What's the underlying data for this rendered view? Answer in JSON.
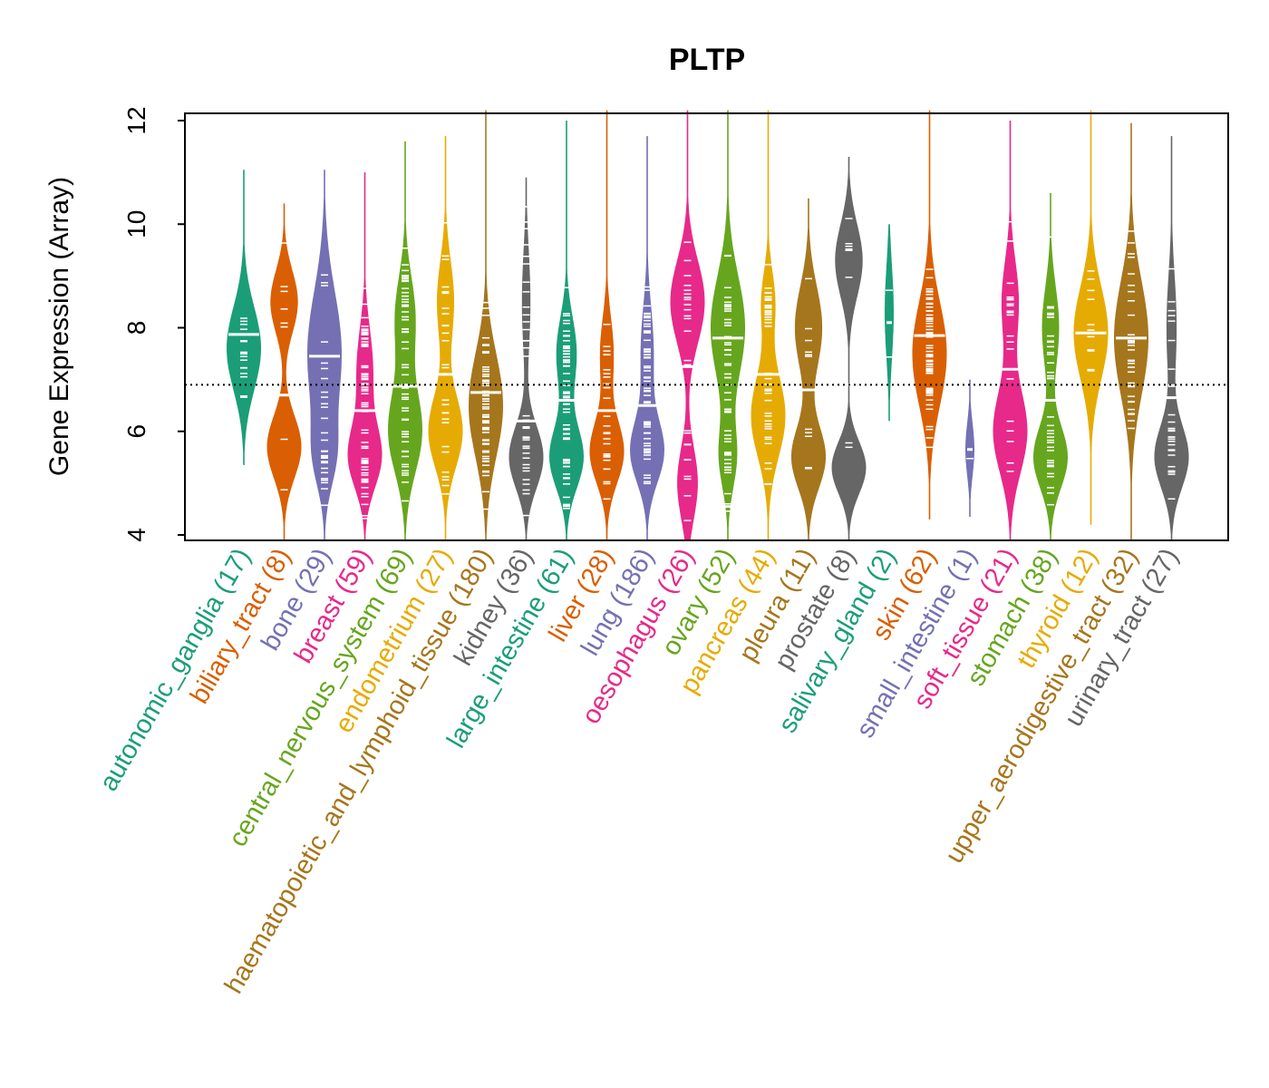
{
  "chart_data": {
    "type": "violin",
    "title": "PLTP",
    "xlabel": "",
    "ylabel": "Gene Expression (Array)",
    "ylim": [
      4,
      12
    ],
    "yticks": [
      "4",
      "6",
      "8",
      "10",
      "12"
    ],
    "reference_line": 6.9,
    "palette": [
      "#1B9E77",
      "#D95F02",
      "#7570B3",
      "#E7298A",
      "#66A61E",
      "#E6AB02",
      "#A6761D",
      "#666666"
    ],
    "groups": [
      {
        "name": "autonomic_ganglia",
        "n": 17,
        "label": "autonomic_ganglia (17)",
        "median": 7.87,
        "min": 5.35,
        "max": 11.05,
        "modes": [
          [
            7.6,
            0.8,
            1
          ]
        ]
      },
      {
        "name": "biliary_tract",
        "n": 8,
        "label": "biliary_tract (8)",
        "median": 6.7,
        "min": 3.9,
        "max": 10.4,
        "modes": [
          [
            5.7,
            0.6,
            1
          ],
          [
            8.5,
            0.6,
            0.8
          ]
        ]
      },
      {
        "name": "bone",
        "n": 29,
        "label": "bone (29)",
        "median": 7.45,
        "min": 3.9,
        "max": 11.05,
        "modes": [
          [
            7.5,
            1.2,
            1
          ],
          [
            5.5,
            0.6,
            0.5
          ]
        ]
      },
      {
        "name": "breast",
        "n": 59,
        "label": "breast (59)",
        "median": 6.4,
        "min": 3.9,
        "max": 11.0,
        "modes": [
          [
            5.5,
            0.6,
            1
          ],
          [
            7.2,
            0.8,
            0.5
          ]
        ]
      },
      {
        "name": "central_nervous_system",
        "n": 69,
        "label": "central_nervous_system (69)",
        "median": 6.87,
        "min": 3.9,
        "max": 11.6,
        "modes": [
          [
            6.0,
            0.8,
            1
          ],
          [
            8.2,
            0.8,
            0.6
          ]
        ]
      },
      {
        "name": "endometrium",
        "n": 27,
        "label": "endometrium (27)",
        "median": 7.1,
        "min": 3.9,
        "max": 11.7,
        "modes": [
          [
            6.0,
            0.7,
            1
          ],
          [
            8.5,
            0.8,
            0.5
          ]
        ]
      },
      {
        "name": "haematopoietic_and_lymphoid_tissue",
        "n": 180,
        "label": "haematopoietic_and_lymphoid_tissue (180)",
        "median": 6.75,
        "min": 3.9,
        "max": 12.2,
        "modes": [
          [
            6.5,
            1.0,
            1
          ]
        ]
      },
      {
        "name": "kidney",
        "n": 36,
        "label": "kidney (36)",
        "median": 6.2,
        "min": 3.9,
        "max": 10.9,
        "modes": [
          [
            5.5,
            0.6,
            1
          ],
          [
            8.5,
            1.0,
            0.25
          ]
        ]
      },
      {
        "name": "large_intestine",
        "n": 61,
        "label": "large_intestine (61)",
        "median": 6.6,
        "min": 3.9,
        "max": 12.0,
        "modes": [
          [
            5.5,
            0.6,
            1
          ],
          [
            7.5,
            0.7,
            0.6
          ]
        ]
      },
      {
        "name": "liver",
        "n": 28,
        "label": "liver (28)",
        "median": 6.4,
        "min": 3.9,
        "max": 12.2,
        "modes": [
          [
            5.6,
            0.6,
            1
          ],
          [
            7.5,
            0.7,
            0.4
          ]
        ]
      },
      {
        "name": "lung",
        "n": 186,
        "label": "lung (186)",
        "median": 6.5,
        "min": 3.9,
        "max": 11.7,
        "modes": [
          [
            5.6,
            0.6,
            1
          ],
          [
            7.5,
            0.9,
            0.4
          ]
        ]
      },
      {
        "name": "oesophagus",
        "n": 26,
        "label": "oesophagus (26)",
        "median": 7.25,
        "min": 3.9,
        "max": 12.2,
        "modes": [
          [
            8.5,
            0.8,
            1
          ],
          [
            5.0,
            0.7,
            0.6
          ]
        ]
      },
      {
        "name": "ovary",
        "n": 52,
        "label": "ovary (52)",
        "median": 7.8,
        "min": 3.9,
        "max": 12.2,
        "modes": [
          [
            8.0,
            1.0,
            1
          ],
          [
            5.5,
            0.6,
            0.5
          ]
        ]
      },
      {
        "name": "pancreas",
        "n": 44,
        "label": "pancreas (44)",
        "median": 7.1,
        "min": 3.9,
        "max": 12.2,
        "modes": [
          [
            6.3,
            0.8,
            1
          ],
          [
            8.5,
            0.6,
            0.4
          ]
        ]
      },
      {
        "name": "pleura",
        "n": 11,
        "label": "pleura (11)",
        "median": 6.8,
        "min": 3.9,
        "max": 10.5,
        "modes": [
          [
            5.5,
            0.6,
            1
          ],
          [
            8.0,
            0.8,
            0.8
          ]
        ]
      },
      {
        "name": "prostate",
        "n": 8,
        "label": "prostate (8)",
        "median": 6.9,
        "min": 3.9,
        "max": 11.3,
        "modes": [
          [
            5.3,
            0.5,
            1
          ],
          [
            9.3,
            0.7,
            0.8
          ]
        ]
      },
      {
        "name": "salivary_gland",
        "n": 2,
        "label": "salivary_gland (2)",
        "median": 8.1,
        "min": 6.2,
        "max": 10.0,
        "modes": [
          [
            8.3,
            0.9,
            1
          ]
        ]
      },
      {
        "name": "skin",
        "n": 62,
        "label": "skin (62)",
        "median": 7.85,
        "min": 4.3,
        "max": 12.2,
        "modes": [
          [
            7.5,
            1.0,
            1
          ]
        ]
      },
      {
        "name": "small_intestine",
        "n": 1,
        "label": "small_intestine (1)",
        "median": 5.65,
        "min": 4.35,
        "max": 7.0,
        "modes": [
          [
            5.65,
            0.5,
            1
          ]
        ]
      },
      {
        "name": "soft_tissue",
        "n": 21,
        "label": "soft_tissue (21)",
        "median": 7.2,
        "min": 3.9,
        "max": 12.0,
        "modes": [
          [
            6.0,
            0.8,
            1
          ],
          [
            8.5,
            0.8,
            0.5
          ]
        ]
      },
      {
        "name": "stomach",
        "n": 38,
        "label": "stomach (38)",
        "median": 6.6,
        "min": 3.9,
        "max": 10.6,
        "modes": [
          [
            5.5,
            0.6,
            1
          ],
          [
            8.0,
            0.8,
            0.5
          ]
        ]
      },
      {
        "name": "thyroid",
        "n": 12,
        "label": "thyroid (12)",
        "median": 7.9,
        "min": 4.2,
        "max": 12.2,
        "modes": [
          [
            7.9,
            0.9,
            1
          ]
        ]
      },
      {
        "name": "upper_aerodigestive_tract",
        "n": 32,
        "label": "upper_aerodigestive_tract (32)",
        "median": 7.8,
        "min": 3.9,
        "max": 11.95,
        "modes": [
          [
            7.8,
            1.1,
            1
          ]
        ]
      },
      {
        "name": "urinary_tract",
        "n": 27,
        "label": "urinary_tract (27)",
        "median": 6.65,
        "min": 3.9,
        "max": 11.7,
        "modes": [
          [
            5.5,
            0.6,
            1
          ],
          [
            8.0,
            1.0,
            0.3
          ]
        ]
      }
    ]
  }
}
